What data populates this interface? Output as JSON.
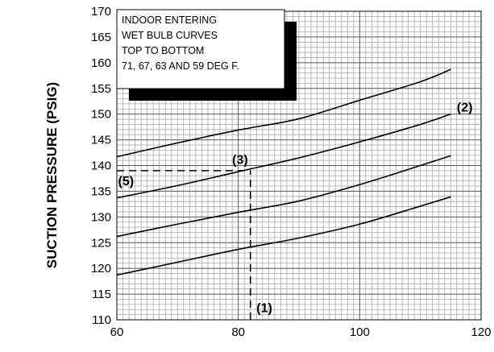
{
  "chart_data": {
    "type": "line",
    "title": "",
    "xlabel": "",
    "ylabel": "SUCTION PRESSURE (PSIG)",
    "xlim": [
      60,
      120
    ],
    "ylim": [
      110,
      170
    ],
    "x_ticks": [
      60,
      80,
      100,
      120
    ],
    "y_ticks": [
      110,
      115,
      120,
      125,
      130,
      135,
      140,
      145,
      150,
      155,
      160,
      165,
      170
    ],
    "grid": true,
    "legend": {
      "placement": "top-left",
      "lines": [
        "INDOOR ENTERING",
        "WET BULB CURVES",
        "TOP TO BOTTOM",
        "71, 67, 63 AND 59 DEG F."
      ]
    },
    "series": [
      {
        "x": [
          60,
          70,
          80,
          90,
          100,
          110,
          115
        ],
        "y": [
          141.7,
          144.4,
          146.9,
          149.1,
          152.7,
          156.3,
          158.7
        ]
      },
      {
        "x": [
          60,
          70,
          80,
          90,
          100,
          110,
          115
        ],
        "y": [
          133.7,
          136.1,
          138.8,
          141.5,
          144.6,
          148.0,
          150.0
        ]
      },
      {
        "x": [
          60,
          70,
          80,
          90,
          100,
          110,
          115
        ],
        "y": [
          126.2,
          128.6,
          130.9,
          133.1,
          136.3,
          140.0,
          141.9
        ]
      },
      {
        "x": [
          60,
          70,
          80,
          90,
          100,
          110,
          115
        ],
        "y": [
          118.7,
          121.2,
          123.7,
          125.9,
          128.6,
          132.1,
          133.9
        ]
      }
    ],
    "reference_lines": [
      {
        "from": [
          82,
          110
        ],
        "to": [
          82,
          139
        ],
        "style": "dashed"
      },
      {
        "from": [
          60,
          139
        ],
        "to": [
          82,
          139
        ],
        "style": "dashed"
      }
    ],
    "annotations": [
      {
        "text": "(1)",
        "x": 83,
        "y": 111.5
      },
      {
        "text": "(2)",
        "x": 116,
        "y": 150.5
      },
      {
        "text": "(3)",
        "x": 79,
        "y": 140.3
      },
      {
        "text": "(5)",
        "x": 60.2,
        "y": 136.2
      }
    ]
  }
}
